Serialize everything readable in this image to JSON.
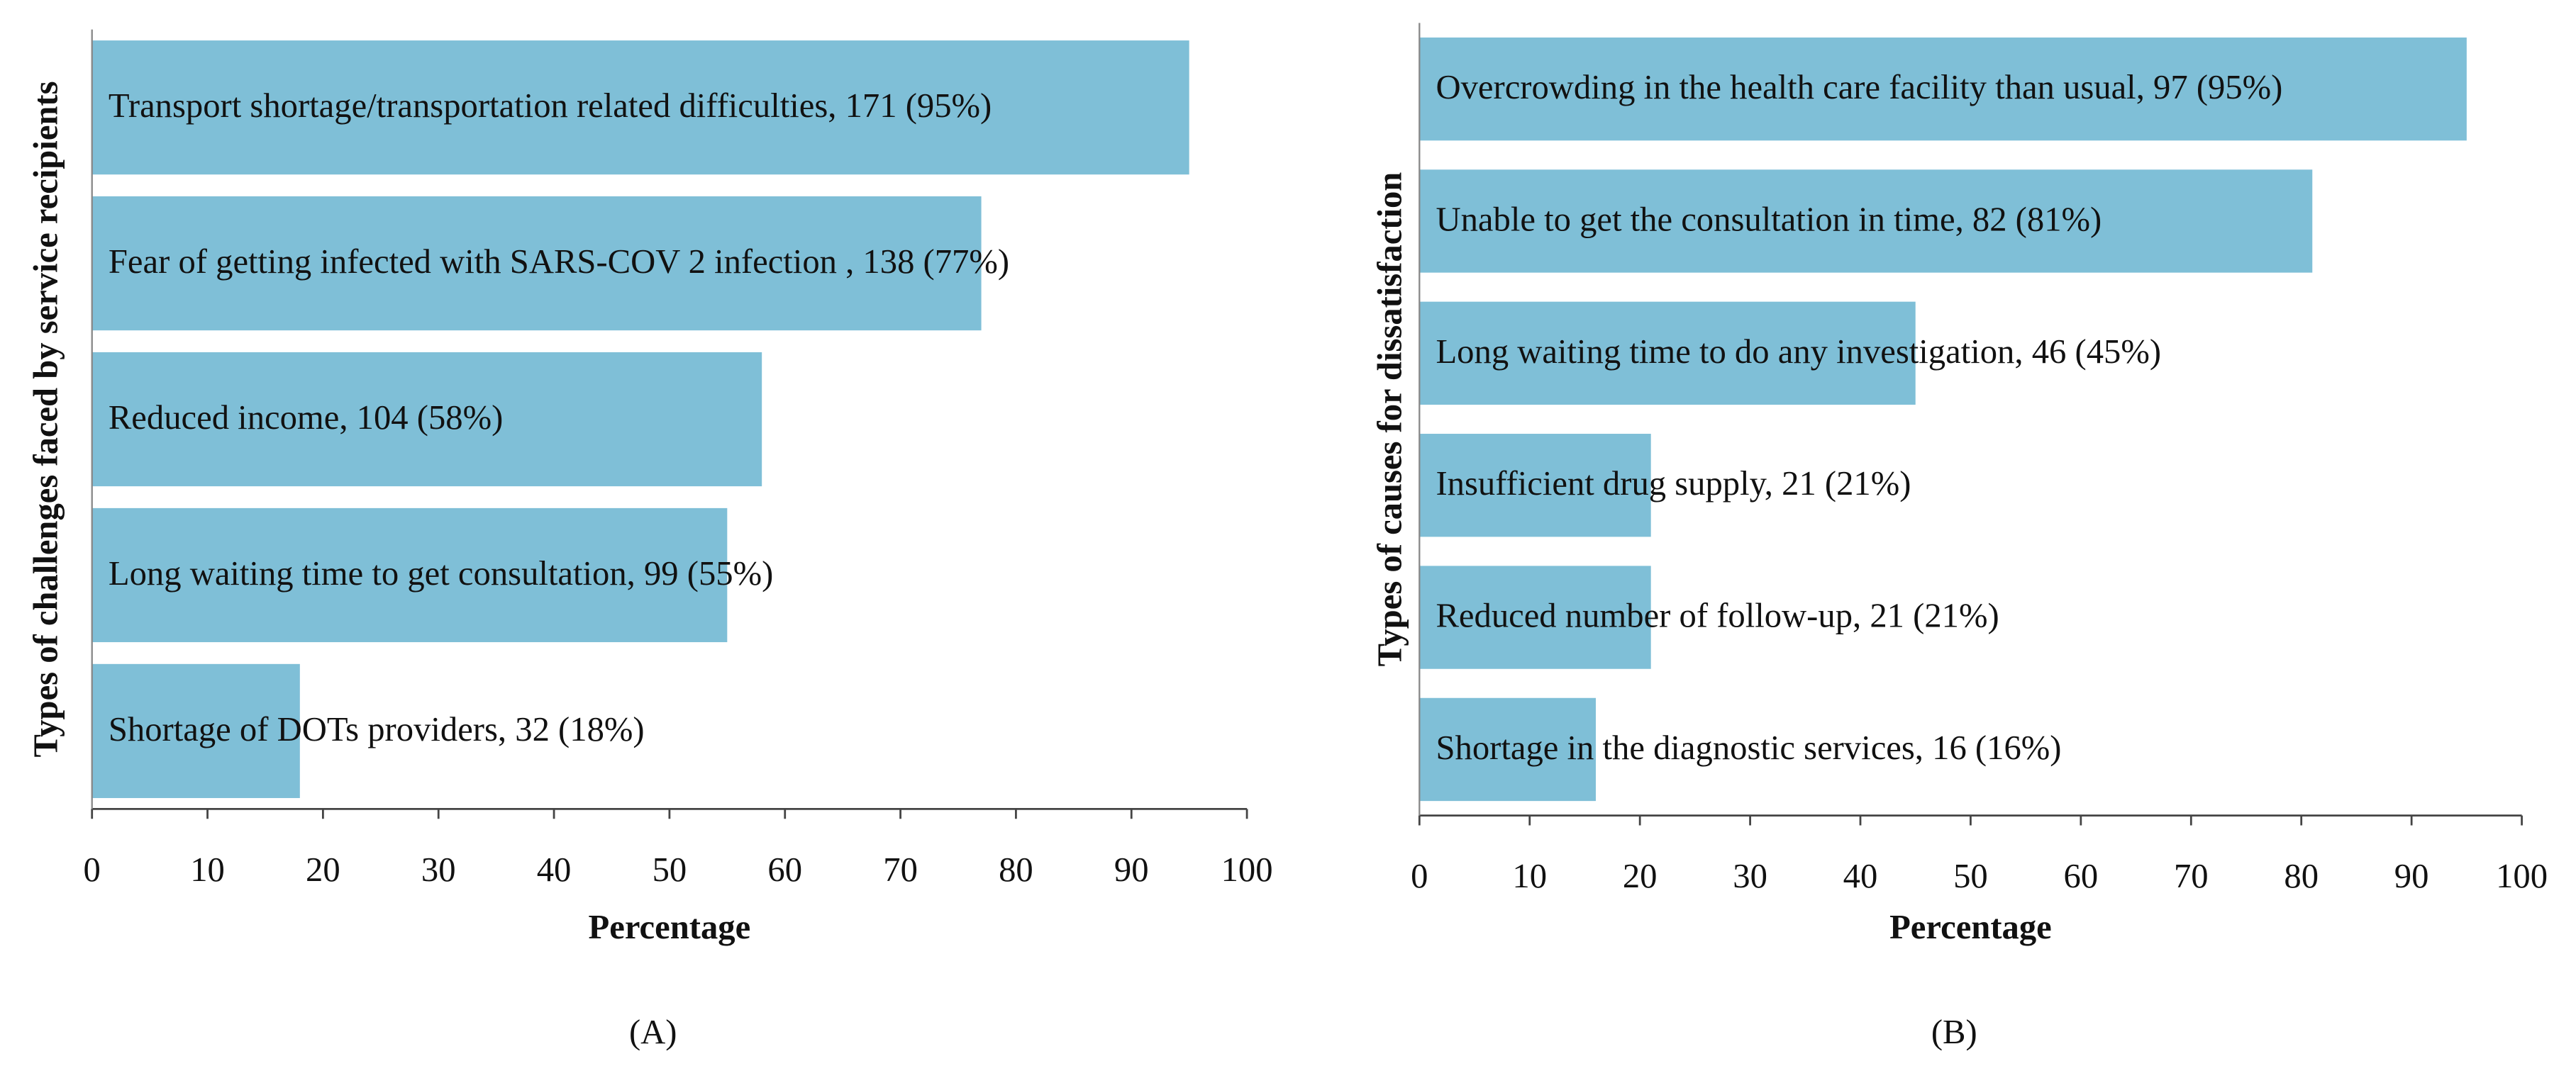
{
  "chart_data": [
    {
      "type": "barh",
      "caption": "(A)",
      "xlabel": "Percentage",
      "ylabel": "Types of challenges faced by service recipients",
      "categories": [
        "Transport shortage/transportation related difficulties,  171 (95%)",
        "Fear of getting infected with SARS-COV 2 infection , 138 (77%)",
        "Reduced income, 104 (58%)",
        "Long waiting time to get consultation, 99 (55%)",
        "Shortage of DOTs providers, 32 (18%)"
      ],
      "values": [
        95,
        77,
        58,
        55,
        18
      ],
      "color": "#7fbfd7",
      "xlim": [
        0,
        100
      ],
      "xticks": [
        0,
        10,
        20,
        30,
        40,
        50,
        60,
        70,
        80,
        90,
        100
      ]
    },
    {
      "type": "barh",
      "caption": "(B)",
      "xlabel": "Percentage",
      "ylabel": "Types of causes for dissatisfaction",
      "categories": [
        "Overcrowding in the health care facility than usual, 97 (95%)",
        "Unable to get the consultation in time, 82 (81%)",
        "Long waiting time to do any investigation, 46 (45%)",
        "Insufficient drug supply, 21 (21%)",
        "Reduced number of follow-up, 21 (21%)",
        "Shortage in the diagnostic services, 16 (16%)"
      ],
      "values": [
        95,
        81,
        45,
        21,
        21,
        16
      ],
      "color": "#7fbfd7",
      "xlim": [
        0,
        100
      ],
      "xticks": [
        0,
        10,
        20,
        30,
        40,
        50,
        60,
        70,
        80,
        90,
        100
      ]
    }
  ]
}
